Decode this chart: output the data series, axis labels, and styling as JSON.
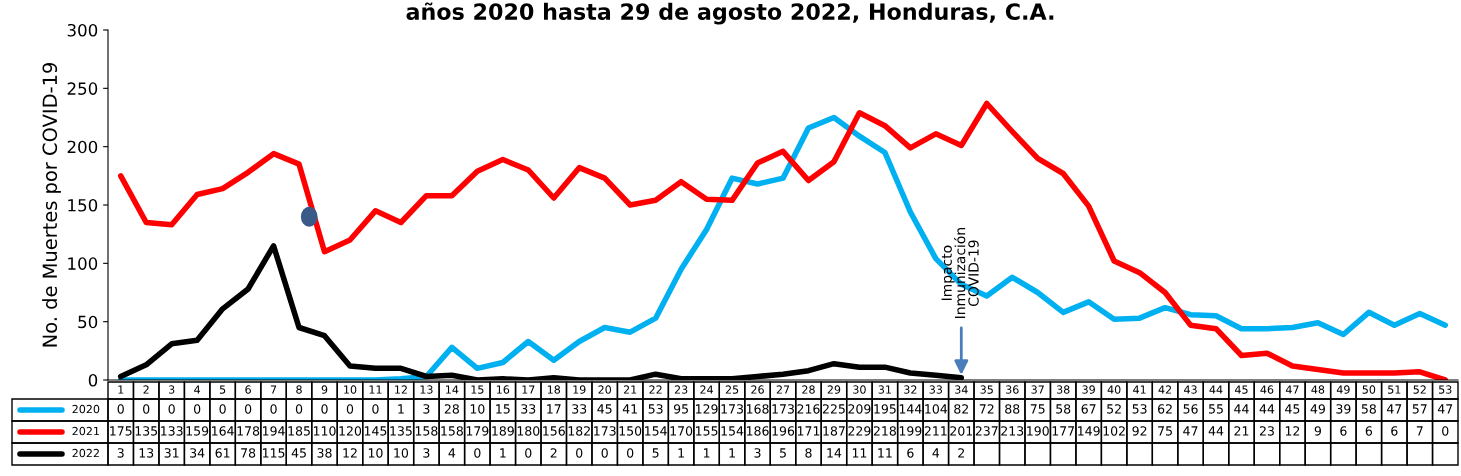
{
  "chart_data": {
    "type": "line",
    "title": "años 2020 hasta 29 de agosto 2022, Honduras, C.A.",
    "ylabel": "No. de Muertes por COVID-19",
    "categories": [
      "1",
      "2",
      "3",
      "4",
      "5",
      "6",
      "7",
      "8",
      "9",
      "10",
      "11",
      "12",
      "13",
      "14",
      "15",
      "16",
      "17",
      "18",
      "19",
      "20",
      "21",
      "22",
      "23",
      "24",
      "25",
      "26",
      "27",
      "28",
      "29",
      "30",
      "31",
      "32",
      "33",
      "34",
      "35",
      "36",
      "37",
      "38",
      "39",
      "40",
      "41",
      "42",
      "43",
      "44",
      "45",
      "46",
      "47",
      "48",
      "49",
      "50",
      "51",
      "52",
      "53"
    ],
    "series": [
      {
        "name": "2020",
        "color": "#00b0f0",
        "values": [
          0,
          0,
          0,
          0,
          0,
          0,
          0,
          0,
          0,
          0,
          0,
          1,
          3,
          28,
          10,
          15,
          33,
          17,
          33,
          45,
          41,
          53,
          95,
          129,
          173,
          168,
          173,
          216,
          225,
          209,
          195,
          144,
          104,
          82,
          72,
          88,
          75,
          58,
          67,
          52,
          53,
          62,
          56,
          55,
          44,
          44,
          45,
          49,
          39,
          58,
          47,
          57,
          47
        ]
      },
      {
        "name": "2021",
        "color": "#ff0000",
        "values": [
          175,
          135,
          133,
          159,
          164,
          178,
          194,
          185,
          110,
          120,
          145,
          135,
          158,
          158,
          179,
          189,
          180,
          156,
          182,
          173,
          150,
          154,
          170,
          155,
          154,
          186,
          196,
          171,
          187,
          229,
          218,
          199,
          211,
          201,
          237,
          213,
          190,
          177,
          149,
          102,
          92,
          75,
          47,
          44,
          21,
          23,
          12,
          9,
          6,
          6,
          6,
          7,
          0
        ]
      },
      {
        "name": "2022",
        "color": "#000000",
        "values": [
          3,
          13,
          31,
          34,
          61,
          78,
          115,
          45,
          38,
          12,
          10,
          10,
          3,
          4,
          0,
          1,
          0,
          2,
          0,
          0,
          0,
          5,
          1,
          1,
          1,
          3,
          5,
          8,
          14,
          11,
          11,
          6,
          4,
          2,
          null,
          null,
          null,
          null,
          null,
          null,
          null,
          null,
          null,
          null,
          null,
          null,
          null,
          null,
          null,
          null,
          null,
          null,
          null
        ]
      }
    ],
    "ylim": [
      0,
      300
    ],
    "yticks": [
      0,
      50,
      100,
      150,
      200,
      250,
      300
    ],
    "annotations": [
      {
        "text": "Impacto\nInmunización\nCOVID-19",
        "x": "34",
        "y": 2
      }
    ],
    "data_labels": true,
    "legend": "bottom left",
    "grid": false,
    "marker": "none",
    "line_style": "solid"
  }
}
